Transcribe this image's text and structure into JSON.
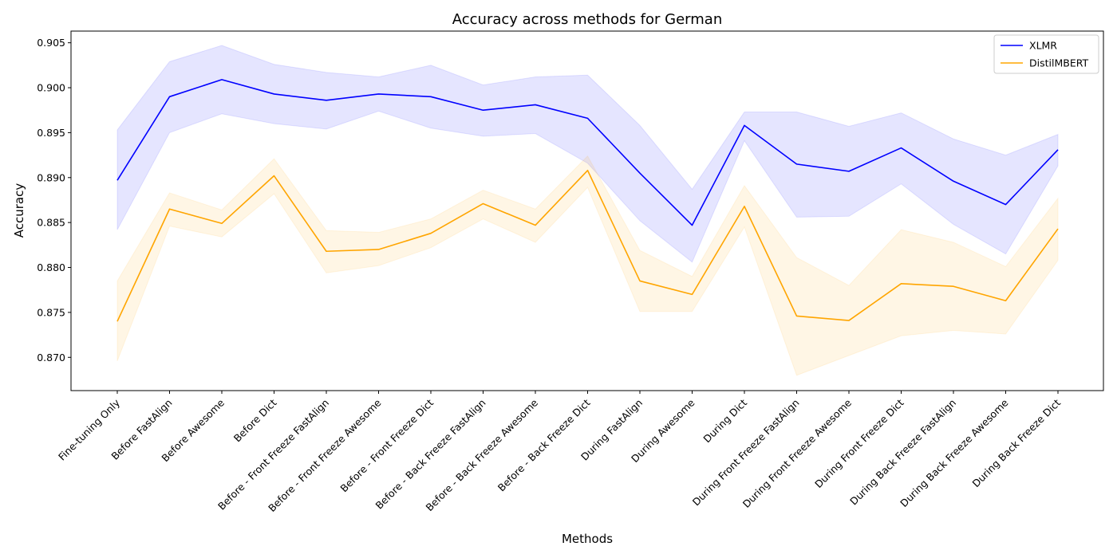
{
  "chart_data": {
    "type": "line",
    "title": "Accuracy across methods for German",
    "xlabel": "Methods",
    "ylabel": "Accuracy",
    "ylim": [
      0.8663,
      0.9063
    ],
    "yticks": [
      0.87,
      0.875,
      0.88,
      0.885,
      0.89,
      0.895,
      0.9,
      0.905
    ],
    "grid": false,
    "legend_position": "top-right",
    "categories": [
      "Fine-tuning Only",
      "Before FastAlign",
      "Before Awesome",
      "Before Dict",
      "Before - Front Freeze FastAlign",
      "Before - Front Freeze Awesome",
      "Before - Front Freeze Dict",
      "Before - Back Freeze FastAlign",
      "Before - Back Freeze Awesome",
      "Before - Back Freeze Dict",
      "During FastAlign",
      "During Awesome",
      "During Dict",
      "During Front Freeze FastAlign",
      "During Front Freeze Awesome",
      "During Front Freeze Dict",
      "During Back Freeze FastAlign",
      "During Back Freeze Awesome",
      "During Back Freeze Dict"
    ],
    "series": [
      {
        "name": "XLMR",
        "color": "#0000ff",
        "band_color": "#0000ff",
        "values": [
          0.8897,
          0.899,
          0.9009,
          0.8993,
          0.8986,
          0.8993,
          0.899,
          0.8975,
          0.8981,
          0.8966,
          0.8905,
          0.8847,
          0.8958,
          0.8915,
          0.8907,
          0.8933,
          0.8896,
          0.887,
          0.8931
        ],
        "lower": [
          0.8842,
          0.895,
          0.8971,
          0.896,
          0.8954,
          0.8974,
          0.8955,
          0.8946,
          0.8949,
          0.8916,
          0.8852,
          0.8806,
          0.8941,
          0.8856,
          0.8857,
          0.8893,
          0.8848,
          0.8815,
          0.8913
        ],
        "upper": [
          0.8953,
          0.9029,
          0.9047,
          0.9026,
          0.9017,
          0.9012,
          0.9025,
          0.9003,
          0.9012,
          0.9014,
          0.8958,
          0.8887,
          0.8973,
          0.8973,
          0.8957,
          0.8972,
          0.8943,
          0.8925,
          0.8948
        ]
      },
      {
        "name": "DistilMBERT",
        "color": "#ffa500",
        "band_color": "#ffa500",
        "values": [
          0.874,
          0.8865,
          0.8849,
          0.8902,
          0.8818,
          0.882,
          0.8838,
          0.8871,
          0.8847,
          0.8908,
          0.8785,
          0.877,
          0.8868,
          0.8746,
          0.8741,
          0.8782,
          0.8779,
          0.8763,
          0.8843
        ],
        "lower": [
          0.8696,
          0.8846,
          0.8834,
          0.8882,
          0.8794,
          0.8802,
          0.8822,
          0.8854,
          0.8828,
          0.8889,
          0.8751,
          0.8751,
          0.8845,
          0.868,
          0.8702,
          0.8724,
          0.873,
          0.8726,
          0.8808
        ],
        "upper": [
          0.8785,
          0.8883,
          0.8864,
          0.8921,
          0.8841,
          0.8839,
          0.8854,
          0.8886,
          0.8865,
          0.8924,
          0.8819,
          0.879,
          0.8891,
          0.8811,
          0.878,
          0.8842,
          0.8828,
          0.8801,
          0.8877
        ]
      }
    ]
  }
}
